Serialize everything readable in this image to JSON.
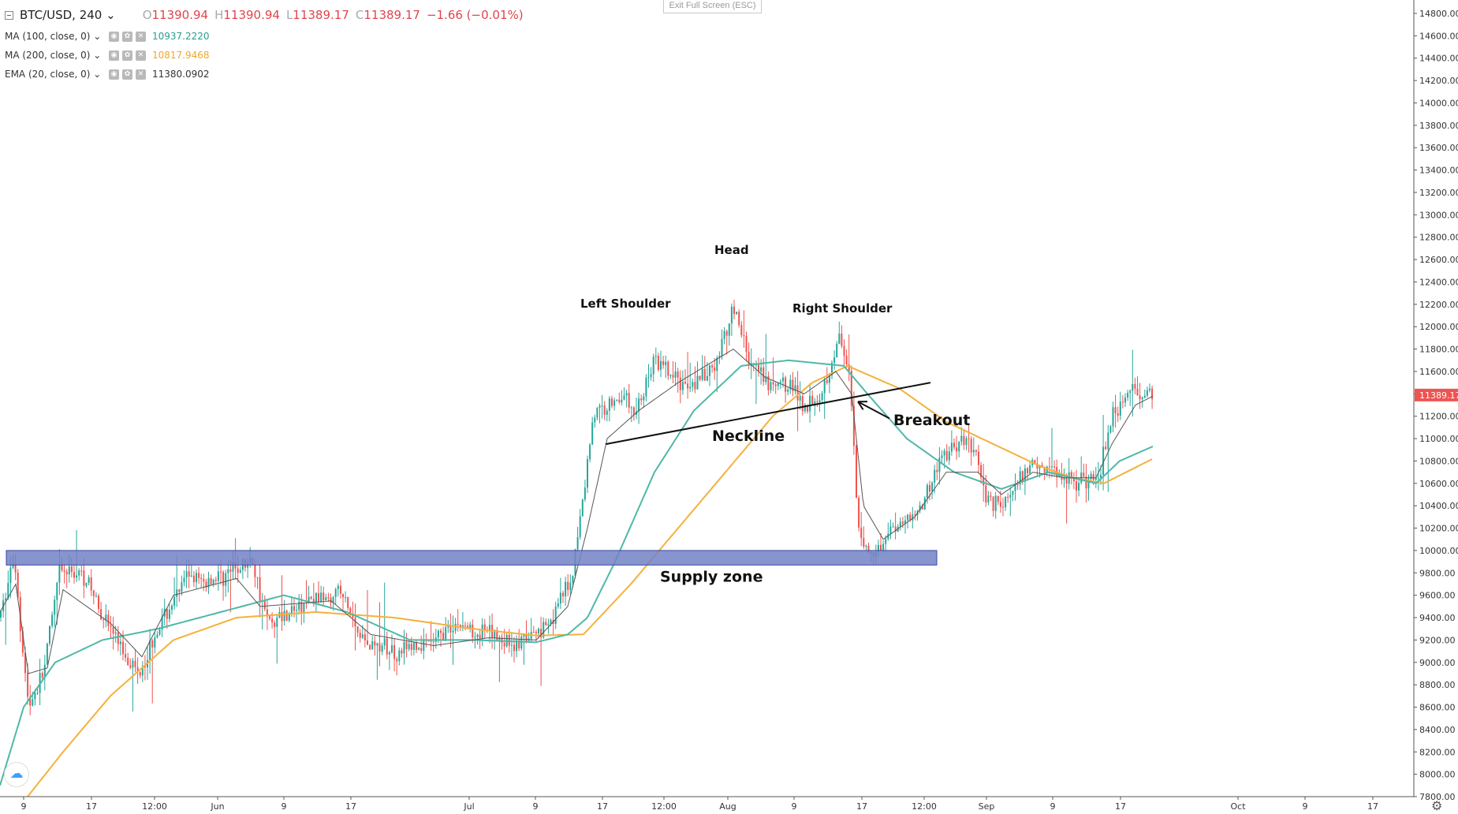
{
  "toolbar": {
    "symbol": "BTC/USD, 240",
    "chevron": "⌄",
    "ohlc": {
      "open_label": "O",
      "open": "11390.94",
      "high_label": "H",
      "high": "11390.94",
      "low_label": "L",
      "low": "11389.17",
      "close_label": "C",
      "close": "11389.17",
      "change": "−1.66 (−0.01%)"
    }
  },
  "indicators": [
    {
      "name": "MA (100, close, 0)",
      "value": "10937.2220",
      "color": "#2a9d8f"
    },
    {
      "name": "MA (200, close, 0)",
      "value": "10817.9468",
      "color": "#f0a82a"
    },
    {
      "name": "EMA (20, close, 0)",
      "value": "11380.0902",
      "color": "#333333"
    }
  ],
  "exit_fullscreen": "Exit Full Screen (ESC)",
  "colors": {
    "up": "#26a69a",
    "down": "#ef5350",
    "ma100": "#4fb8a8",
    "ma200": "#f4b13c",
    "ema20": "#555555",
    "zone": "#7381c6",
    "price_tag": "#ef5350"
  },
  "chart_data": {
    "type": "candlestick",
    "y_range": [
      7800,
      14800
    ],
    "y_ticks": [
      "14800.00",
      "14600.00",
      "14400.00",
      "14200.00",
      "14000.00",
      "13800.00",
      "13600.00",
      "13400.00",
      "13200.00",
      "13000.00",
      "12800.00",
      "12600.00",
      "12400.00",
      "12200.00",
      "12000.00",
      "11800.00",
      "11600.00",
      "11400.00",
      "11200.00",
      "11000.00",
      "10800.00",
      "10600.00",
      "10400.00",
      "10200.00",
      "10000.00",
      "9800.00",
      "9600.00",
      "9400.00",
      "9200.00",
      "9000.00",
      "8800.00",
      "8600.00",
      "8400.00",
      "8200.00",
      "8000.00",
      "7800.00"
    ],
    "x_ticks": [
      "9",
      "17",
      "12:00",
      "Jun",
      "9",
      "17",
      "Jul",
      "9",
      "17",
      "12:00",
      "Aug",
      "9",
      "17",
      "12:00",
      "Sep",
      "9",
      "17",
      "Oct",
      "9",
      "17"
    ],
    "last_price": "11389.17",
    "price_keypoints": [
      [
        0,
        9400
      ],
      [
        18,
        9950
      ],
      [
        36,
        8600
      ],
      [
        55,
        8900
      ],
      [
        75,
        9800
      ],
      [
        105,
        9800
      ],
      [
        140,
        9300
      ],
      [
        175,
        8900
      ],
      [
        200,
        9300
      ],
      [
        240,
        9800
      ],
      [
        255,
        9700
      ],
      [
        290,
        9800
      ],
      [
        320,
        9900
      ],
      [
        340,
        9350
      ],
      [
        380,
        9500
      ],
      [
        430,
        9650
      ],
      [
        460,
        9200
      ],
      [
        500,
        9100
      ],
      [
        545,
        9150
      ],
      [
        575,
        9350
      ],
      [
        620,
        9250
      ],
      [
        660,
        9150
      ],
      [
        700,
        9400
      ],
      [
        725,
        9750
      ],
      [
        740,
        10500
      ],
      [
        752,
        11200
      ],
      [
        790,
        11400
      ],
      [
        805,
        11200
      ],
      [
        830,
        11700
      ],
      [
        860,
        11500
      ],
      [
        880,
        11500
      ],
      [
        905,
        11600
      ],
      [
        930,
        12200
      ],
      [
        950,
        11700
      ],
      [
        975,
        11450
      ],
      [
        1000,
        11500
      ],
      [
        1020,
        11300
      ],
      [
        1040,
        11400
      ],
      [
        1065,
        11900
      ],
      [
        1078,
        11500
      ],
      [
        1088,
        10200
      ],
      [
        1105,
        9950
      ],
      [
        1130,
        10200
      ],
      [
        1165,
        10350
      ],
      [
        1195,
        10850
      ],
      [
        1230,
        11000
      ],
      [
        1250,
        10500
      ],
      [
        1270,
        10400
      ],
      [
        1310,
        10800
      ],
      [
        1340,
        10700
      ],
      [
        1370,
        10600
      ],
      [
        1395,
        10700
      ],
      [
        1410,
        11200
      ],
      [
        1435,
        11450
      ],
      [
        1462,
        11390
      ]
    ],
    "ma100_keypoints": [
      [
        0,
        7900
      ],
      [
        30,
        8600
      ],
      [
        70,
        9000
      ],
      [
        130,
        9200
      ],
      [
        200,
        9300
      ],
      [
        280,
        9450
      ],
      [
        360,
        9600
      ],
      [
        440,
        9450
      ],
      [
        520,
        9200
      ],
      [
        600,
        9200
      ],
      [
        680,
        9180
      ],
      [
        720,
        9250
      ],
      [
        745,
        9400
      ],
      [
        780,
        9900
      ],
      [
        830,
        10700
      ],
      [
        880,
        11250
      ],
      [
        940,
        11650
      ],
      [
        1000,
        11700
      ],
      [
        1070,
        11650
      ],
      [
        1100,
        11400
      ],
      [
        1150,
        11000
      ],
      [
        1210,
        10700
      ],
      [
        1270,
        10550
      ],
      [
        1330,
        10700
      ],
      [
        1390,
        10600
      ],
      [
        1420,
        10800
      ],
      [
        1462,
        10930
      ]
    ],
    "ma200_keypoints": [
      [
        35,
        7800
      ],
      [
        80,
        8200
      ],
      [
        140,
        8700
      ],
      [
        220,
        9200
      ],
      [
        300,
        9400
      ],
      [
        400,
        9450
      ],
      [
        500,
        9400
      ],
      [
        600,
        9300
      ],
      [
        680,
        9240
      ],
      [
        740,
        9250
      ],
      [
        800,
        9700
      ],
      [
        860,
        10200
      ],
      [
        920,
        10700
      ],
      [
        980,
        11200
      ],
      [
        1030,
        11500
      ],
      [
        1075,
        11650
      ],
      [
        1140,
        11450
      ],
      [
        1200,
        11150
      ],
      [
        1260,
        10950
      ],
      [
        1320,
        10750
      ],
      [
        1360,
        10650
      ],
      [
        1400,
        10600
      ],
      [
        1462,
        10820
      ]
    ],
    "ema20_keypoints": [
      [
        0,
        9450
      ],
      [
        20,
        9700
      ],
      [
        36,
        8900
      ],
      [
        60,
        8950
      ],
      [
        80,
        9650
      ],
      [
        140,
        9350
      ],
      [
        180,
        9050
      ],
      [
        220,
        9600
      ],
      [
        300,
        9750
      ],
      [
        330,
        9500
      ],
      [
        420,
        9550
      ],
      [
        470,
        9250
      ],
      [
        550,
        9150
      ],
      [
        620,
        9220
      ],
      [
        680,
        9200
      ],
      [
        720,
        9500
      ],
      [
        745,
        10200
      ],
      [
        770,
        11000
      ],
      [
        810,
        11250
      ],
      [
        860,
        11500
      ],
      [
        930,
        11800
      ],
      [
        970,
        11550
      ],
      [
        1020,
        11400
      ],
      [
        1060,
        11600
      ],
      [
        1080,
        11400
      ],
      [
        1095,
        10400
      ],
      [
        1120,
        10100
      ],
      [
        1160,
        10300
      ],
      [
        1200,
        10700
      ],
      [
        1240,
        10700
      ],
      [
        1270,
        10500
      ],
      [
        1310,
        10700
      ],
      [
        1350,
        10650
      ],
      [
        1390,
        10650
      ],
      [
        1410,
        10950
      ],
      [
        1440,
        11300
      ],
      [
        1462,
        11380
      ]
    ],
    "neckline": {
      "from": [
        768,
        10950
      ],
      "to": [
        1180,
        11500
      ],
      "label": "Neckline",
      "label_at": [
        903,
        10980
      ]
    },
    "supply_zone": {
      "from_x": 8,
      "to_x": 1188,
      "y_top": 10000,
      "y_bottom": 9870,
      "label": "Supply zone",
      "label_at": [
        837,
        9720
      ]
    },
    "annotations": [
      {
        "text": "Head",
        "at": [
          906,
          12650
        ],
        "size": 15
      },
      {
        "text": "Left Shoulder",
        "at": [
          736,
          12170
        ],
        "size": 15
      },
      {
        "text": "Right Shoulder",
        "at": [
          1005,
          12130
        ],
        "size": 15
      },
      {
        "text": "Breakout",
        "at": [
          1133,
          11120
        ],
        "size": 19
      }
    ],
    "breakout_arrow": {
      "from": [
        1128,
        11180
      ],
      "to": [
        1088,
        11330
      ]
    }
  }
}
